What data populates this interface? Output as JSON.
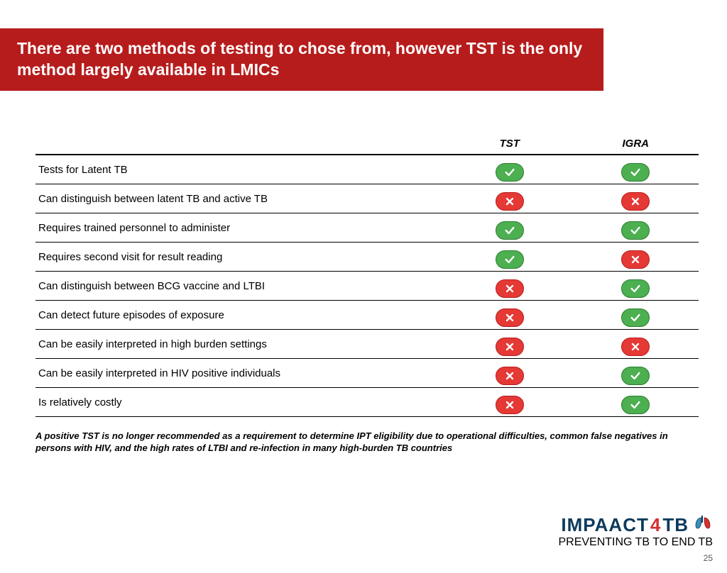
{
  "title": "There are two methods of testing to chose from, however TST is the only method largely available in LMICs",
  "table": {
    "columns": [
      "",
      "TST",
      "IGRA"
    ],
    "rows": [
      {
        "label": "Tests for Latent TB",
        "tst": "yes",
        "igra": "yes"
      },
      {
        "label": "Can distinguish between latent TB and active TB",
        "tst": "no",
        "igra": "no"
      },
      {
        "label": "Requires trained personnel to administer",
        "tst": "yes",
        "igra": "yes"
      },
      {
        "label": "Requires second visit for result reading",
        "tst": "yes",
        "igra": "no"
      },
      {
        "label": "Can distinguish between BCG vaccine and LTBI",
        "tst": "no",
        "igra": "yes"
      },
      {
        "label": "Can detect future episodes of exposure",
        "tst": "no",
        "igra": "yes"
      },
      {
        "label": "Can be easily interpreted in high burden settings",
        "tst": "no",
        "igra": "no"
      },
      {
        "label": "Can be easily interpreted in HIV positive individuals",
        "tst": "no",
        "igra": "yes"
      },
      {
        "label": "Is relatively costly",
        "tst": "no",
        "igra": "yes"
      }
    ],
    "colors": {
      "yes": "#4caf50",
      "no": "#e53935",
      "border": "#000000"
    }
  },
  "footnote": "A positive TST is no longer recommended as a requirement to determine IPT eligibility due to operational difficulties, common false negatives in persons with HIV, and the high rates of LTBI and re-infection in many high-burden TB countries",
  "logo": {
    "part1": "IMPAACT",
    "part2": "4",
    "part3": "TB",
    "tagline": "PREVENTING TB TO END TB"
  },
  "page": "25"
}
